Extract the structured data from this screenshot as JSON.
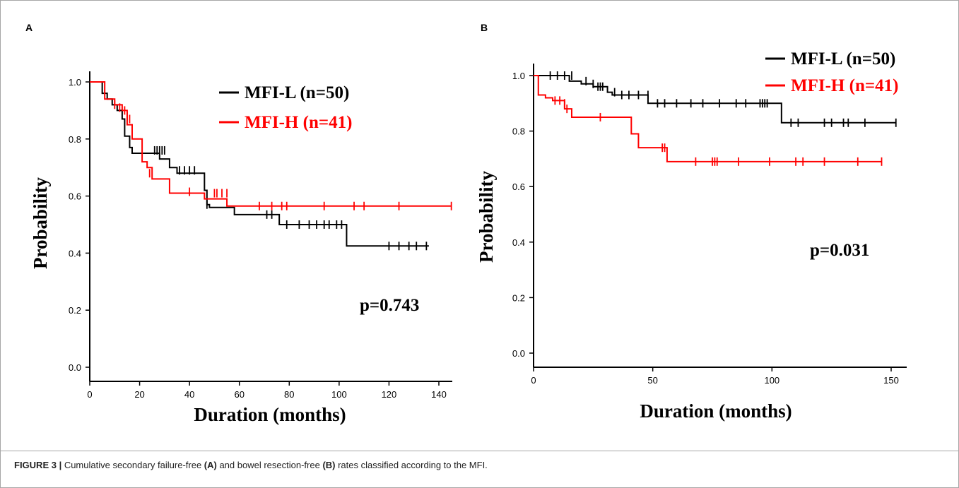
{
  "chart_data": [
    {
      "panel_label": "A",
      "type": "line",
      "xlabel": "Duration (months)",
      "ylabel": "Probability",
      "xlim": [
        0,
        145
      ],
      "ylim": [
        0,
        1.05
      ],
      "xticks": [
        0,
        20,
        40,
        60,
        80,
        100,
        120,
        140
      ],
      "yticks": [
        "0.0",
        "0.2",
        "0.4",
        "0.6",
        "0.8",
        "1.0"
      ],
      "p_value": "p=0.743",
      "legend_position": "top-right",
      "series": [
        {
          "name": "MFI-L (n=50)",
          "color": "#000000",
          "steps": [
            [
              0,
              1.0
            ],
            [
              5,
              0.96
            ],
            [
              7,
              0.94
            ],
            [
              9,
              0.92
            ],
            [
              11,
              0.9
            ],
            [
              13,
              0.87
            ],
            [
              14,
              0.81
            ],
            [
              16,
              0.77
            ],
            [
              17,
              0.75
            ],
            [
              28,
              0.73
            ],
            [
              32,
              0.7
            ],
            [
              35,
              0.68
            ],
            [
              46,
              0.62
            ],
            [
              47,
              0.57
            ],
            [
              48,
              0.56
            ],
            [
              58,
              0.535
            ],
            [
              76,
              0.5
            ],
            [
              103,
              0.425
            ],
            [
              136,
              0.425
            ]
          ],
          "censored": [
            [
              26,
              0.76
            ],
            [
              27,
              0.76
            ],
            [
              28,
              0.76
            ],
            [
              29,
              0.76
            ],
            [
              30,
              0.76
            ],
            [
              36,
              0.69
            ],
            [
              38,
              0.69
            ],
            [
              40,
              0.69
            ],
            [
              42,
              0.69
            ],
            [
              47,
              0.57
            ],
            [
              71,
              0.535
            ],
            [
              73,
              0.535
            ],
            [
              79,
              0.5
            ],
            [
              84,
              0.5
            ],
            [
              88,
              0.5
            ],
            [
              91,
              0.5
            ],
            [
              94,
              0.5
            ],
            [
              96,
              0.5
            ],
            [
              99,
              0.5
            ],
            [
              101,
              0.5
            ],
            [
              120,
              0.425
            ],
            [
              124,
              0.425
            ],
            [
              128,
              0.425
            ],
            [
              131,
              0.425
            ],
            [
              135,
              0.425
            ]
          ]
        },
        {
          "name": "MFI-H (n=41)",
          "color": "#ff0000",
          "steps": [
            [
              0,
              1.0
            ],
            [
              6,
              0.94
            ],
            [
              10,
              0.92
            ],
            [
              13,
              0.9
            ],
            [
              15,
              0.85
            ],
            [
              17,
              0.8
            ],
            [
              21,
              0.72
            ],
            [
              23,
              0.7
            ],
            [
              25,
              0.66
            ],
            [
              32,
              0.61
            ],
            [
              46,
              0.59
            ],
            [
              55,
              0.565
            ],
            [
              145,
              0.565
            ]
          ],
          "censored": [
            [
              10,
              0.92
            ],
            [
              12,
              0.91
            ],
            [
              14,
              0.9
            ],
            [
              15,
              0.88
            ],
            [
              16,
              0.87
            ],
            [
              24,
              0.68
            ],
            [
              40,
              0.615
            ],
            [
              50,
              0.61
            ],
            [
              51,
              0.61
            ],
            [
              53,
              0.61
            ],
            [
              55,
              0.61
            ],
            [
              68,
              0.565
            ],
            [
              73,
              0.565
            ],
            [
              77,
              0.565
            ],
            [
              79,
              0.565
            ],
            [
              94,
              0.565
            ],
            [
              106,
              0.565
            ],
            [
              110,
              0.565
            ],
            [
              124,
              0.565
            ],
            [
              145,
              0.565
            ]
          ]
        }
      ]
    },
    {
      "panel_label": "B",
      "type": "line",
      "xlabel": "Duration (months)",
      "ylabel": "Probability",
      "xlim": [
        0,
        155
      ],
      "ylim": [
        0,
        1.05
      ],
      "xticks": [
        0,
        50,
        100,
        150
      ],
      "yticks": [
        "0.0",
        "0.2",
        "0.4",
        "0.6",
        "0.8",
        "1.0"
      ],
      "p_value": "p=0.031",
      "legend_position": "top-right",
      "series": [
        {
          "name": "MFI-L (n=50)",
          "color": "#000000",
          "steps": [
            [
              0,
              1.0
            ],
            [
              15,
              0.98
            ],
            [
              20,
              0.97
            ],
            [
              25,
              0.96
            ],
            [
              31,
              0.94
            ],
            [
              33,
              0.93
            ],
            [
              48,
              0.9
            ],
            [
              50,
              0.9
            ],
            [
              104,
              0.83
            ],
            [
              152,
              0.83
            ]
          ],
          "censored": [
            [
              7,
              1.0
            ],
            [
              10,
              1.0
            ],
            [
              13,
              1.0
            ],
            [
              16,
              1.0
            ],
            [
              22,
              0.98
            ],
            [
              25,
              0.97
            ],
            [
              27,
              0.96
            ],
            [
              28,
              0.96
            ],
            [
              29,
              0.96
            ],
            [
              34,
              0.94
            ],
            [
              37,
              0.93
            ],
            [
              40,
              0.93
            ],
            [
              44,
              0.93
            ],
            [
              48,
              0.93
            ],
            [
              52,
              0.9
            ],
            [
              55,
              0.9
            ],
            [
              60,
              0.9
            ],
            [
              66,
              0.9
            ],
            [
              71,
              0.9
            ],
            [
              78,
              0.9
            ],
            [
              85,
              0.9
            ],
            [
              89,
              0.9
            ],
            [
              95,
              0.9
            ],
            [
              96,
              0.9
            ],
            [
              97,
              0.9
            ],
            [
              98,
              0.9
            ],
            [
              108,
              0.83
            ],
            [
              111,
              0.83
            ],
            [
              122,
              0.83
            ],
            [
              125,
              0.83
            ],
            [
              130,
              0.83
            ],
            [
              132,
              0.83
            ],
            [
              139,
              0.83
            ],
            [
              152,
              0.83
            ]
          ]
        },
        {
          "name": "MFI-H (n=41)",
          "color": "#ff0000",
          "steps": [
            [
              0,
              1.0
            ],
            [
              2,
              0.93
            ],
            [
              5,
              0.92
            ],
            [
              8,
              0.91
            ],
            [
              13,
              0.88
            ],
            [
              16,
              0.85
            ],
            [
              41,
              0.79
            ],
            [
              44,
              0.74
            ],
            [
              56,
              0.69
            ],
            [
              146,
              0.69
            ]
          ],
          "censored": [
            [
              9,
              0.91
            ],
            [
              11,
              0.91
            ],
            [
              13,
              0.9
            ],
            [
              14,
              0.88
            ],
            [
              28,
              0.85
            ],
            [
              54,
              0.74
            ],
            [
              55,
              0.74
            ],
            [
              68,
              0.69
            ],
            [
              75,
              0.69
            ],
            [
              76,
              0.69
            ],
            [
              77,
              0.69
            ],
            [
              86,
              0.69
            ],
            [
              99,
              0.69
            ],
            [
              110,
              0.69
            ],
            [
              113,
              0.69
            ],
            [
              122,
              0.69
            ],
            [
              136,
              0.69
            ],
            [
              146,
              0.69
            ]
          ]
        }
      ]
    }
  ],
  "caption": {
    "figure_label": "FIGURE 3 |",
    "text_1": " Cumulative secondary failure-free ",
    "ref_a": "(A)",
    "text_2": " and bowel resection-free ",
    "ref_b": "(B)",
    "text_3": " rates classified according to the MFI."
  }
}
